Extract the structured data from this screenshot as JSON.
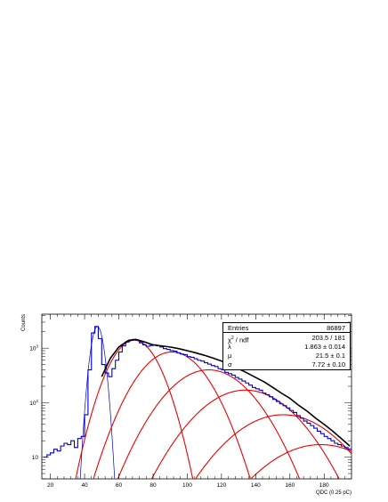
{
  "chart_data": {
    "type": "line",
    "xlabel": "QDC (0.25 pC)",
    "ylabel": "Counts",
    "log_y": true,
    "xlim": [
      15,
      196
    ],
    "ylim": [
      4,
      4200
    ],
    "x_ticks": [
      "20",
      "40",
      "60",
      "80",
      "100",
      "120",
      "140",
      "160",
      "180"
    ],
    "x_tick_values": [
      20,
      40,
      60,
      80,
      100,
      120,
      140,
      160,
      180
    ],
    "y_ticks": [
      {
        "base": "10",
        "exp": "",
        "value": 10
      },
      {
        "base": "10",
        "exp": "2",
        "value": 100
      },
      {
        "base": "10",
        "exp": "3",
        "value": 1000
      }
    ],
    "colors": {
      "histogram": "#0000cc",
      "fit_total": "#000000",
      "components": "#ee0000",
      "pedestal": "#0000cc"
    },
    "series": [
      {
        "kind": "histogram",
        "x": [
          17,
          19,
          21,
          23,
          25,
          27,
          29,
          31,
          33,
          35,
          37,
          39,
          41,
          43,
          45,
          47,
          49,
          51,
          53,
          55,
          57,
          59,
          61,
          63,
          65,
          67,
          69,
          71,
          73,
          75,
          77,
          79,
          81,
          83,
          85,
          87,
          89,
          91,
          93,
          95,
          97,
          99,
          101,
          103,
          105,
          107,
          109,
          111,
          113,
          115,
          117,
          119,
          121,
          123,
          125,
          127,
          129,
          131,
          133,
          135,
          137,
          139,
          141,
          143,
          145,
          147,
          149,
          151,
          153,
          155,
          157,
          159,
          161,
          163,
          165,
          167,
          169,
          171,
          173,
          175,
          177,
          179,
          181,
          183,
          185,
          187,
          189,
          191,
          193,
          195
        ],
        "y": [
          10,
          11,
          12,
          14,
          13,
          16,
          18,
          17,
          20,
          15,
          22,
          24,
          60,
          400,
          1900,
          2500,
          1500,
          500,
          350,
          300,
          420,
          600,
          850,
          1100,
          1300,
          1420,
          1450,
          1400,
          1250,
          1150,
          1080,
          1120,
          1150,
          1100,
          1050,
          980,
          950,
          900,
          880,
          820,
          780,
          760,
          700,
          680,
          640,
          600,
          580,
          540,
          510,
          480,
          460,
          420,
          400,
          360,
          340,
          320,
          290,
          270,
          250,
          230,
          210,
          190,
          180,
          170,
          150,
          140,
          128,
          115,
          105,
          95,
          88,
          80,
          72,
          66,
          58,
          52,
          46,
          42,
          38,
          34,
          30,
          27,
          24,
          22,
          20,
          18,
          17,
          16,
          15,
          14
        ]
      },
      {
        "kind": "fit_total",
        "x": [
          50,
          55,
          60,
          65,
          70,
          75,
          80,
          85,
          90,
          95,
          100,
          105,
          110,
          115,
          120,
          125,
          130,
          135,
          140,
          145,
          150,
          155,
          160,
          165,
          170,
          175,
          180,
          185,
          190,
          195
        ],
        "y": [
          300,
          650,
          1050,
          1350,
          1450,
          1300,
          1150,
          1100,
          1050,
          980,
          900,
          820,
          740,
          660,
          580,
          500,
          420,
          350,
          290,
          240,
          190,
          150,
          120,
          90,
          70,
          52,
          40,
          30,
          22,
          16
        ]
      }
    ],
    "components": [
      {
        "center": 47.5,
        "peak": 2500,
        "sigma": 2.8,
        "color": "blue"
      },
      {
        "center": 69,
        "peak": 1400,
        "sigma": 10,
        "color": "red"
      },
      {
        "center": 91,
        "peak": 850,
        "sigma": 14,
        "color": "red"
      },
      {
        "center": 112.5,
        "peak": 400,
        "sigma": 17.5,
        "color": "red"
      },
      {
        "center": 134,
        "peak": 170,
        "sigma": 20,
        "color": "red"
      },
      {
        "center": 156,
        "peak": 60,
        "sigma": 22,
        "color": "red"
      },
      {
        "center": 178,
        "peak": 17,
        "sigma": 24,
        "color": "red"
      }
    ]
  },
  "stats": {
    "rows": [
      {
        "key": "Entries",
        "key_sup": "",
        "key_tail": "",
        "value": "86897"
      },
      {
        "key": "χ",
        "key_sup": "2",
        "key_tail": " / ndf",
        "value": "203.5 / 181"
      },
      {
        "key": "λ",
        "key_sup": "",
        "key_tail": "",
        "value": "1.863 ± 0.014"
      },
      {
        "key": "μ",
        "key_sup": "",
        "key_tail": "",
        "value": "21.5 ± 0.1"
      },
      {
        "key": "σ",
        "key_sup": "",
        "key_tail": "",
        "value": "7.72 ± 0.10"
      }
    ]
  }
}
